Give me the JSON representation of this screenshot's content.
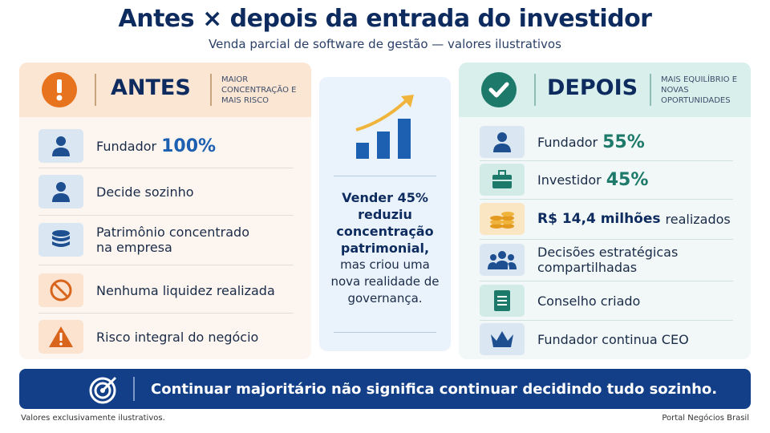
{
  "header": {
    "title": "Antes × depois da entrada do investidor",
    "subtitle": "Venda parcial de software de gestão — valores ilustrativos"
  },
  "before": {
    "label": "ANTES",
    "note": "Maior concentração e mais risco",
    "items": [
      {
        "text": "Fundador",
        "highlight": "100%"
      },
      {
        "text": "Decide sozinho"
      },
      {
        "text": "Patrimônio concentrado na empresa"
      },
      {
        "text": "Nenhuma liquidez realizada"
      },
      {
        "text": "Risco integral do negócio"
      }
    ]
  },
  "center": {
    "bold": "Vender 45% reduziu concentração patrimonial,",
    "regular": "mas criou uma nova realidade de governança."
  },
  "after": {
    "label": "DEPOIS",
    "note": "Mais equilíbrio e novas oportunidades",
    "items": [
      {
        "text": "Fundador",
        "highlight": "55%"
      },
      {
        "text": "Investidor",
        "highlight": "45%"
      },
      {
        "highlight": "R$ 14,4 milhões",
        "text": "realizados"
      },
      {
        "text": "Decisões estratégicas compartilhadas"
      },
      {
        "text": "Conselho criado"
      },
      {
        "text": "Fundador continua CEO"
      }
    ]
  },
  "banner": "Continuar majoritário não significa continuar decidindo tudo sozinho.",
  "footer": {
    "left": "Valores exclusivamente ilustrativos.",
    "right": "Portal Negócios Brasil"
  }
}
